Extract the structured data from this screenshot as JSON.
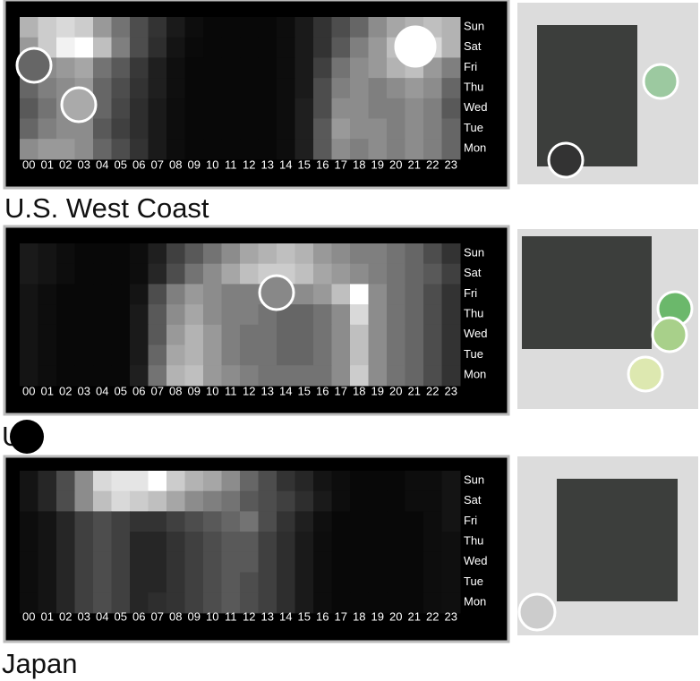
{
  "chart_data": [
    {
      "type": "heatmap",
      "title": "U.S. West Coast",
      "x": [
        "00",
        "01",
        "02",
        "03",
        "04",
        "05",
        "06",
        "07",
        "08",
        "09",
        "10",
        "11",
        "12",
        "13",
        "14",
        "15",
        "16",
        "17",
        "18",
        "19",
        "20",
        "21",
        "22",
        "23"
      ],
      "y": [
        "Sun",
        "Sat",
        "Fri",
        "Thu",
        "Wed",
        "Tue",
        "Mon"
      ],
      "values": [
        [
          70,
          80,
          85,
          80,
          60,
          45,
          30,
          20,
          10,
          5,
          3,
          3,
          3,
          3,
          5,
          10,
          20,
          30,
          40,
          55,
          65,
          70,
          75,
          70
        ],
        [
          60,
          80,
          95,
          100,
          75,
          50,
          30,
          18,
          8,
          4,
          3,
          3,
          3,
          3,
          5,
          10,
          20,
          35,
          50,
          60,
          75,
          90,
          85,
          70
        ],
        [
          50,
          55,
          60,
          65,
          45,
          35,
          22,
          12,
          6,
          3,
          3,
          3,
          3,
          3,
          5,
          10,
          25,
          45,
          55,
          60,
          70,
          75,
          60,
          50
        ],
        [
          40,
          50,
          55,
          60,
          40,
          30,
          20,
          12,
          6,
          3,
          3,
          3,
          3,
          3,
          5,
          10,
          30,
          50,
          55,
          50,
          55,
          60,
          55,
          40
        ],
        [
          35,
          45,
          55,
          55,
          40,
          28,
          18,
          10,
          5,
          3,
          3,
          3,
          3,
          3,
          5,
          12,
          30,
          55,
          55,
          50,
          50,
          55,
          50,
          35
        ],
        [
          40,
          50,
          55,
          55,
          35,
          25,
          18,
          10,
          5,
          3,
          3,
          3,
          3,
          3,
          5,
          12,
          35,
          60,
          55,
          55,
          50,
          55,
          50,
          40
        ],
        [
          55,
          60,
          60,
          55,
          40,
          30,
          20,
          10,
          5,
          3,
          3,
          3,
          3,
          3,
          5,
          12,
          35,
          55,
          50,
          55,
          50,
          55,
          50,
          40
        ]
      ]
    },
    {
      "type": "heatmap",
      "title": "U",
      "x": [
        "00",
        "01",
        "02",
        "03",
        "04",
        "05",
        "06",
        "07",
        "08",
        "09",
        "10",
        "11",
        "12",
        "13",
        "14",
        "15",
        "16",
        "17",
        "18",
        "19",
        "20",
        "21",
        "22",
        "23"
      ],
      "y": [
        "Sun",
        "Sat",
        "Fri",
        "Thu",
        "Wed",
        "Tue",
        "Mon"
      ],
      "values": [
        [
          10,
          8,
          5,
          3,
          3,
          3,
          5,
          12,
          25,
          35,
          45,
          55,
          65,
          70,
          75,
          70,
          60,
          55,
          50,
          50,
          45,
          40,
          30,
          20
        ],
        [
          10,
          8,
          5,
          3,
          3,
          3,
          5,
          15,
          30,
          45,
          55,
          65,
          75,
          80,
          80,
          75,
          65,
          60,
          55,
          50,
          45,
          40,
          35,
          25
        ],
        [
          8,
          5,
          3,
          3,
          3,
          3,
          8,
          30,
          50,
          60,
          55,
          50,
          50,
          50,
          55,
          55,
          60,
          75,
          100,
          55,
          45,
          40,
          30,
          20
        ],
        [
          8,
          5,
          3,
          3,
          3,
          3,
          10,
          35,
          55,
          65,
          55,
          50,
          50,
          45,
          40,
          40,
          45,
          55,
          85,
          55,
          45,
          40,
          30,
          20
        ],
        [
          8,
          5,
          3,
          3,
          3,
          3,
          10,
          35,
          60,
          70,
          60,
          50,
          45,
          45,
          40,
          40,
          45,
          55,
          75,
          55,
          45,
          40,
          30,
          20
        ],
        [
          8,
          5,
          3,
          3,
          3,
          3,
          10,
          40,
          65,
          70,
          60,
          50,
          45,
          45,
          40,
          40,
          45,
          55,
          75,
          55,
          45,
          40,
          30,
          20
        ],
        [
          8,
          5,
          3,
          3,
          3,
          3,
          12,
          45,
          70,
          75,
          60,
          55,
          50,
          45,
          45,
          45,
          45,
          55,
          80,
          55,
          45,
          40,
          30,
          20
        ]
      ]
    },
    {
      "type": "heatmap",
      "title": "Japan",
      "x": [
        "00",
        "01",
        "02",
        "03",
        "04",
        "05",
        "06",
        "07",
        "08",
        "09",
        "10",
        "11",
        "12",
        "13",
        "14",
        "15",
        "16",
        "17",
        "18",
        "19",
        "20",
        "21",
        "22",
        "23"
      ],
      "y": [
        "Sun",
        "Sat",
        "Fri",
        "Thu",
        "Wed",
        "Tue",
        "Mon"
      ],
      "values": [
        [
          8,
          15,
          30,
          55,
          85,
          90,
          90,
          100,
          80,
          70,
          65,
          55,
          40,
          30,
          20,
          15,
          8,
          5,
          3,
          3,
          3,
          5,
          5,
          8
        ],
        [
          8,
          15,
          30,
          55,
          75,
          85,
          80,
          75,
          65,
          55,
          50,
          45,
          35,
          30,
          25,
          18,
          10,
          5,
          3,
          3,
          3,
          5,
          5,
          8
        ],
        [
          5,
          8,
          15,
          25,
          30,
          25,
          20,
          20,
          25,
          30,
          35,
          40,
          45,
          30,
          20,
          12,
          6,
          3,
          3,
          3,
          3,
          3,
          5,
          8
        ],
        [
          5,
          8,
          15,
          25,
          30,
          25,
          15,
          15,
          20,
          25,
          30,
          35,
          35,
          25,
          18,
          10,
          5,
          3,
          3,
          3,
          3,
          3,
          5,
          6
        ],
        [
          5,
          8,
          15,
          25,
          30,
          25,
          15,
          15,
          20,
          25,
          30,
          35,
          35,
          25,
          18,
          10,
          5,
          3,
          3,
          3,
          3,
          3,
          5,
          6
        ],
        [
          5,
          8,
          15,
          25,
          30,
          25,
          15,
          15,
          20,
          25,
          30,
          35,
          30,
          25,
          18,
          10,
          5,
          3,
          3,
          3,
          3,
          3,
          5,
          6
        ],
        [
          5,
          8,
          15,
          25,
          30,
          25,
          15,
          18,
          20,
          25,
          30,
          35,
          30,
          25,
          18,
          10,
          5,
          3,
          3,
          3,
          3,
          3,
          5,
          6
        ]
      ]
    }
  ]
}
